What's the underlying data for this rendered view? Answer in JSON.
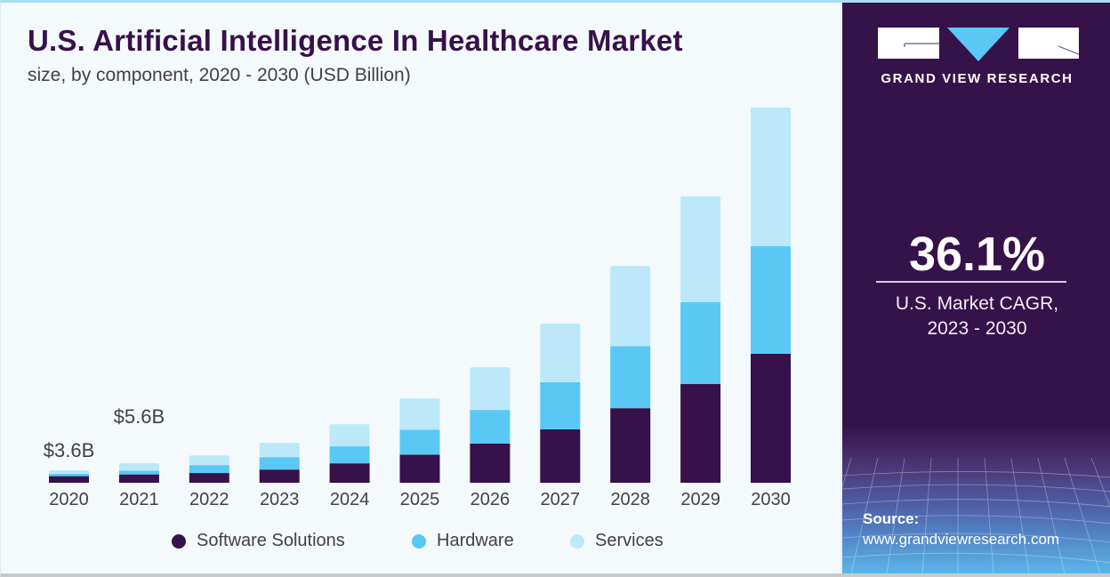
{
  "header": {
    "title": "U.S. Artificial Intelligence In Healthcare Market",
    "subtitle": "size, by component, 2020 - 2030 (USD Billion)"
  },
  "sidebar": {
    "brand": "GRAND VIEW RESEARCH",
    "logo_icon": "gvr-logo-icon",
    "cagr_value": "36.1%",
    "cagr_label_line1": "U.S. Market CAGR,",
    "cagr_label_line2": "2023 - 2030",
    "source_label": "Source:",
    "source_url": "www.grandviewresearch.com"
  },
  "colors": {
    "software": "#36114a",
    "hardware": "#5ac8f5",
    "services": "#bce8f9",
    "sidebar_bg": "#36124a",
    "title": "#37114a"
  },
  "chart_data": {
    "type": "bar",
    "stacked": true,
    "title": "U.S. Artificial Intelligence In Healthcare Market",
    "subtitle": "size, by component, 2020 - 2030 (USD Billion)",
    "xlabel": "",
    "ylabel": "USD Billion",
    "ylim": [
      0,
      110
    ],
    "grid": false,
    "legend_position": "bottom",
    "categories": [
      "2020",
      "2021",
      "2022",
      "2023",
      "2024",
      "2025",
      "2026",
      "2027",
      "2028",
      "2029",
      "2030"
    ],
    "series": [
      {
        "name": "Software Solutions",
        "color": "#36114a",
        "values": [
          1.9,
          2.4,
          2.8,
          3.8,
          5.6,
          8.1,
          11.3,
          15.4,
          21.5,
          28.5,
          37.2
        ]
      },
      {
        "name": "Hardware",
        "color": "#5ac8f5",
        "values": [
          0.7,
          1.1,
          2.3,
          3.6,
          4.9,
          7.2,
          9.7,
          13.6,
          17.9,
          23.6,
          31.0
        ]
      },
      {
        "name": "Services",
        "color": "#bce8f9",
        "values": [
          1.0,
          2.1,
          2.8,
          4.1,
          6.4,
          9.0,
          12.3,
          16.9,
          23.1,
          30.5,
          40.0
        ]
      }
    ],
    "annotations": [
      {
        "category": "2020",
        "text": "$3.6B"
      },
      {
        "category": "2021",
        "text": "$5.6B"
      }
    ]
  }
}
